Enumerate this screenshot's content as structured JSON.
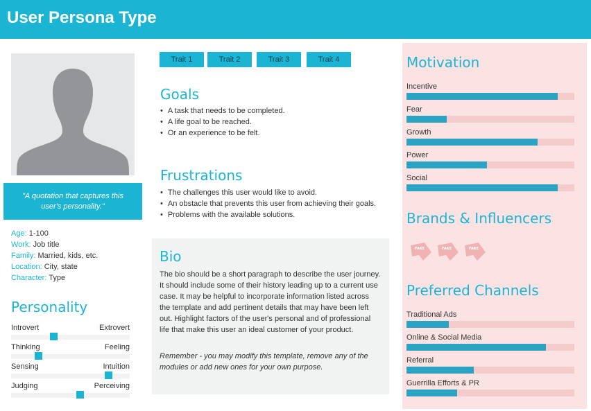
{
  "header": {
    "title": "User Persona Type"
  },
  "profile": {
    "quote": "\"A quotation that captures this user's personality.\"",
    "facts": [
      {
        "key": "Age:",
        "value": "1-100"
      },
      {
        "key": "Work:",
        "value": "Job title"
      },
      {
        "key": "Family:",
        "value": "Married, kids, etc."
      },
      {
        "key": "Location:",
        "value": "City, state"
      },
      {
        "key": "Character:",
        "value": "Type"
      }
    ]
  },
  "personality": {
    "title": "Personality",
    "scales": [
      {
        "left": "Introvert",
        "right": "Extrovert",
        "level": 0.36
      },
      {
        "left": "Thinking",
        "right": "Feeling",
        "level": 0.23
      },
      {
        "left": "Sensing",
        "right": "Intuition",
        "level": 0.82
      },
      {
        "left": "Judging",
        "right": "Perceiving",
        "level": 0.58
      }
    ]
  },
  "traits": [
    "Trait 1",
    "Trait 2",
    "Trait 3",
    "Trait 4"
  ],
  "goals": {
    "title": "Goals",
    "items": [
      "A task that needs to be completed.",
      "A life goal to be reached.",
      "Or an experience to be felt."
    ]
  },
  "frustrations": {
    "title": "Frustrations",
    "items": [
      "The challenges this user would like to avoid.",
      "An obstacle that prevents this user from achieving their goals.",
      "Problems with the available solutions."
    ]
  },
  "bio": {
    "title": "Bio",
    "text": "The bio should be a short paragraph to describe the user journey. It should include some of their history leading up to a current use case. It may be helpful to incorporate information listed across the template and add pertinent details that may have been left out. Highlight factors of the user's personal and of professional life that make this user an ideal customer of your product.",
    "remember": "Remember - you may modify this template, remove any of the modules or add new ones for your own purpose."
  },
  "motivation": {
    "title": "Motivation",
    "items": [
      {
        "label": "Incentive",
        "value": 0.9
      },
      {
        "label": "Fear",
        "value": 0.24
      },
      {
        "label": "Growth",
        "value": 0.78
      },
      {
        "label": "Power",
        "value": 0.48
      },
      {
        "label": "Social",
        "value": 0.9
      }
    ]
  },
  "brands": {
    "title": "Brands & Influencers",
    "icon": "fake-logo-icon",
    "count": 3
  },
  "channels": {
    "title": "Preferred Channels",
    "items": [
      {
        "label": "Traditional Ads",
        "value": 0.25
      },
      {
        "label": "Online & Social Media",
        "value": 0.83
      },
      {
        "label": "Referral",
        "value": 0.4
      },
      {
        "label": "Guerrilla Efforts & PR",
        "value": 0.3
      }
    ]
  },
  "colors": {
    "accent": "#1cb4d3",
    "bar": "#2aa4c2",
    "panel": "#fbe3e3"
  }
}
